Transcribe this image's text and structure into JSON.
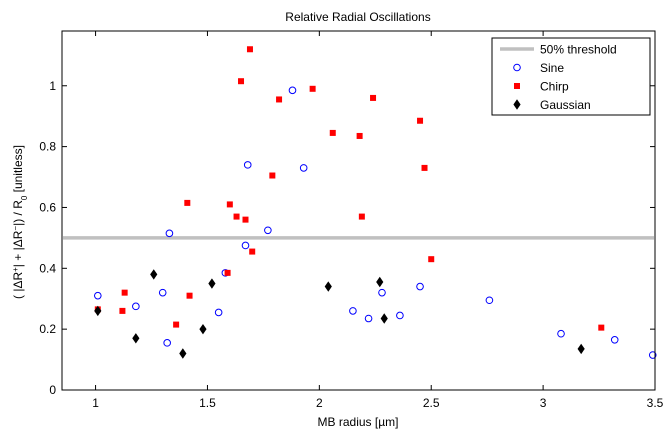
{
  "chart_data": {
    "type": "scatter",
    "title": "Relative Radial Oscillations",
    "xlabel": "MB radius [µm]",
    "ylabel": {
      "open": "( |ΔR",
      "plus": "+",
      "mid": "| + |ΔR",
      "minus": "−",
      "close": "|) / R",
      "sub": "0",
      "unit": "  [unitless]"
    },
    "xlim": [
      0.85,
      3.5
    ],
    "ylim": [
      0,
      1.18
    ],
    "xticks": [
      1,
      1.5,
      2,
      2.5,
      3,
      3.5
    ],
    "xtick_labels": [
      "1",
      "1.5",
      "2",
      "2.5",
      "3",
      "3.5"
    ],
    "yticks": [
      0,
      0.2,
      0.4,
      0.6,
      0.8,
      1
    ],
    "ytick_labels": [
      "0",
      "0.2",
      "0.4",
      "0.6",
      "0.8",
      "1"
    ],
    "grid": false,
    "legend_position": "top-right",
    "threshold": {
      "name": "50% threshold",
      "y": 0.5,
      "color": "#c0c0c0"
    },
    "series": [
      {
        "name": "Sine",
        "marker": "circle",
        "color": "#0000ff",
        "points": [
          [
            1.01,
            0.31
          ],
          [
            1.18,
            0.275
          ],
          [
            1.3,
            0.32
          ],
          [
            1.32,
            0.155
          ],
          [
            1.33,
            0.515
          ],
          [
            1.55,
            0.255
          ],
          [
            1.58,
            0.385
          ],
          [
            1.67,
            0.475
          ],
          [
            1.68,
            0.74
          ],
          [
            1.77,
            0.525
          ],
          [
            1.88,
            0.985
          ],
          [
            1.93,
            0.73
          ],
          [
            2.15,
            0.26
          ],
          [
            2.22,
            0.235
          ],
          [
            2.28,
            0.32
          ],
          [
            2.36,
            0.245
          ],
          [
            2.45,
            0.34
          ],
          [
            2.76,
            0.295
          ],
          [
            3.08,
            0.185
          ],
          [
            3.32,
            0.165
          ],
          [
            3.49,
            0.115
          ]
        ]
      },
      {
        "name": "Chirp",
        "marker": "square",
        "color": "#ff0000",
        "points": [
          [
            1.01,
            0.265
          ],
          [
            1.12,
            0.26
          ],
          [
            1.13,
            0.32
          ],
          [
            1.36,
            0.215
          ],
          [
            1.41,
            0.615
          ],
          [
            1.42,
            0.31
          ],
          [
            1.59,
            0.385
          ],
          [
            1.6,
            0.61
          ],
          [
            1.63,
            0.57
          ],
          [
            1.65,
            1.015
          ],
          [
            1.67,
            0.56
          ],
          [
            1.69,
            1.12
          ],
          [
            1.7,
            0.455
          ],
          [
            1.79,
            0.705
          ],
          [
            1.82,
            0.955
          ],
          [
            1.97,
            0.99
          ],
          [
            2.06,
            0.845
          ],
          [
            2.18,
            0.835
          ],
          [
            2.19,
            0.57
          ],
          [
            2.24,
            0.96
          ],
          [
            2.45,
            0.885
          ],
          [
            2.47,
            0.73
          ],
          [
            2.5,
            0.43
          ],
          [
            3.26,
            0.205
          ]
        ]
      },
      {
        "name": "Gaussian",
        "marker": "diamond",
        "color": "#000000",
        "points": [
          [
            1.01,
            0.26
          ],
          [
            1.18,
            0.17
          ],
          [
            1.26,
            0.38
          ],
          [
            1.39,
            0.12
          ],
          [
            1.48,
            0.2
          ],
          [
            1.52,
            0.35
          ],
          [
            2.04,
            0.34
          ],
          [
            2.27,
            0.355
          ],
          [
            2.29,
            0.235
          ],
          [
            3.17,
            0.135
          ]
        ]
      }
    ]
  }
}
